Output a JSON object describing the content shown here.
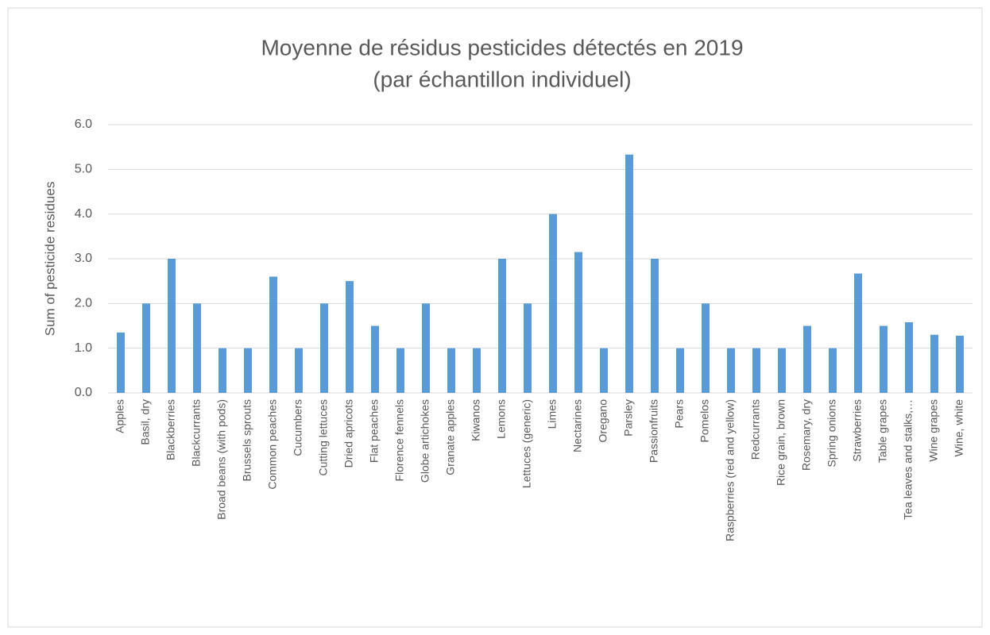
{
  "chart_data": {
    "type": "bar",
    "title": "Moyenne de résidus pesticides détectés en 2019",
    "subtitle": "(par échantillon individuel)",
    "y_label": "Sum of pesticide residues",
    "categories": [
      "Apples",
      "Basil, dry",
      "Blackberries",
      "Blackcurrants",
      "Broad beans (with pods)",
      "Brussels sprouts",
      "Common peaches",
      "Cucumbers",
      "Cutting lettuces",
      "Dried apricots",
      "Flat peaches",
      "Florence fennels",
      "Globe artichokes",
      "Granate apples",
      "Kiwanos",
      "Lemons",
      "Lettuces (generic)",
      "Limes",
      "Nectarines",
      "Oregano",
      "Parsley",
      "Passionfruits",
      "Pears",
      "Pomelos",
      "Raspberries (red and yellow)",
      "Redcurrants",
      "Rice grain, brown",
      "Rosemary, dry",
      "Spring onions",
      "Strawberries",
      "Table grapes",
      "Tea leaves and stalks,…",
      "Wine grapes",
      "Wine, white"
    ],
    "values": [
      1.35,
      2,
      3,
      2,
      1,
      1,
      2.6,
      1,
      2,
      2.5,
      1.5,
      1,
      2,
      1,
      1,
      3,
      2,
      4,
      3.15,
      1,
      5.33,
      3,
      1,
      2,
      1,
      1,
      1,
      1.5,
      1,
      2.67,
      1.5,
      1.58,
      1.3,
      1.28
    ],
    "color": "#5b9bd5",
    "ylim": [
      0,
      6
    ],
    "yticks": [
      {
        "value": 0,
        "label": "0.0"
      },
      {
        "value": 1,
        "label": "1.0"
      },
      {
        "value": 2,
        "label": "2.0"
      },
      {
        "value": 3,
        "label": "3.0"
      },
      {
        "value": 4,
        "label": "4.0"
      },
      {
        "value": 5,
        "label": "5.0"
      },
      {
        "value": 6,
        "label": "6.0"
      }
    ],
    "grid": true
  }
}
